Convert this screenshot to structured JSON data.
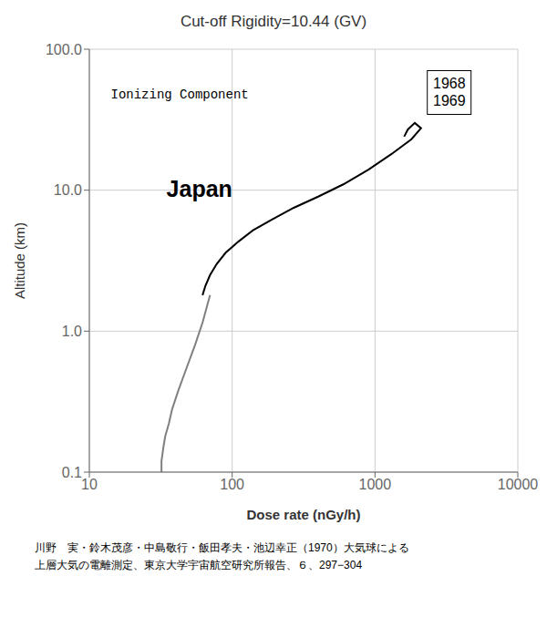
{
  "chart_data": {
    "type": "line",
    "title": "Cut-off Rigidity=10.44 (GV)",
    "x_label": "Dose rate  (nGy/h)",
    "y_label": "Altitude (km)",
    "log": true,
    "grid": true,
    "xlim": [
      10,
      10000
    ],
    "ylim": [
      0.1,
      100
    ],
    "xticks": [
      10,
      100,
      1000,
      10000
    ],
    "yticks": [
      0.1,
      {
        "value": 1,
        "label": "1.0"
      },
      {
        "value": 10,
        "label": "10.0"
      },
      {
        "value": 100,
        "label": "100.0"
      }
    ],
    "series": [
      {
        "color": "gray",
        "x": [
          32,
          32,
          33,
          34,
          36,
          38,
          42,
          48,
          55,
          62,
          70
        ],
        "values": [
          0.1,
          0.12,
          0.15,
          0.18,
          0.22,
          0.28,
          0.38,
          0.55,
          0.8,
          1.15,
          1.8
        ]
      },
      {
        "color": "black",
        "x": [
          62,
          65,
          70,
          78,
          90,
          110,
          140,
          190,
          270,
          400,
          600,
          900,
          1300,
          1800,
          2100,
          1900,
          1700,
          1600
        ],
        "values": [
          1.8,
          2.1,
          2.5,
          3.0,
          3.6,
          4.3,
          5.2,
          6.2,
          7.5,
          9.0,
          11.0,
          14.0,
          18.0,
          23.0,
          27.5,
          30.0,
          27.0,
          24.0
        ]
      }
    ],
    "annotations": [
      "Ionizing Component",
      "1968\n1969",
      "Japan"
    ],
    "footnotes": [
      "川野　実・鈴木茂彦・中島敬行・飯田孝夫・池辺幸正（1970）大気球による",
      "上層大気の電離測定、東京大学宇宙航空研究所報告、６、297−304"
    ]
  }
}
